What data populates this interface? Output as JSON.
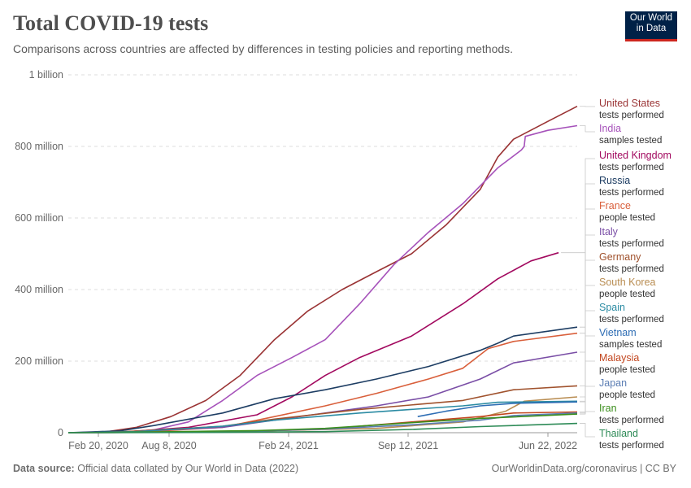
{
  "header": {
    "title": "Total COVID-19 tests",
    "subtitle": "Comparisons across countries are affected by differences in testing policies and reporting methods.",
    "logo_line1": "Our World",
    "logo_line2": "in Data"
  },
  "footer": {
    "source_label": "Data source:",
    "source_text": "Official data collated by Our World in Data (2022)",
    "right_text": "OurWorldinData.org/coronavirus | CC BY"
  },
  "colors": {
    "logo_bg": "#002147",
    "logo_accent": "#ce261e"
  },
  "chart_data": {
    "type": "line",
    "title": "Total COVID-19 tests",
    "x_ticks": [
      "Feb 20, 2020",
      "Aug 8, 2020",
      "Feb 24, 2021",
      "Sep 12, 2021",
      "Jun 22, 2022"
    ],
    "x_range": [
      "2020-01-01",
      "2022-06-22"
    ],
    "y_ticks": [
      {
        "value": 0,
        "label": "0"
      },
      {
        "value": 200000000,
        "label": "200 million"
      },
      {
        "value": 400000000,
        "label": "400 million"
      },
      {
        "value": 600000000,
        "label": "600 million"
      },
      {
        "value": 800000000,
        "label": "800 million"
      },
      {
        "value": 1000000000,
        "label": "1 billion"
      }
    ],
    "ylim": [
      0,
      1000000000
    ],
    "grid": true,
    "legend": "right",
    "series": [
      {
        "name": "United States",
        "unit": "tests performed",
        "color": "#9a3334",
        "points": [
          [
            "2020-01-01",
            0
          ],
          [
            "2020-03-01",
            1000000
          ],
          [
            "2020-05-01",
            15000000
          ],
          [
            "2020-07-01",
            45000000
          ],
          [
            "2020-09-01",
            90000000
          ],
          [
            "2020-11-01",
            160000000
          ],
          [
            "2021-01-01",
            260000000
          ],
          [
            "2021-03-01",
            340000000
          ],
          [
            "2021-05-01",
            400000000
          ],
          [
            "2021-07-01",
            450000000
          ],
          [
            "2021-09-01",
            500000000
          ],
          [
            "2021-11-01",
            580000000
          ],
          [
            "2022-01-01",
            680000000
          ],
          [
            "2022-02-01",
            770000000
          ],
          [
            "2022-03-01",
            820000000
          ],
          [
            "2022-05-01",
            870000000
          ],
          [
            "2022-06-22",
            912000000
          ]
        ]
      },
      {
        "name": "India",
        "unit": "samples tested",
        "color": "#a652ba",
        "points": [
          [
            "2020-01-01",
            0
          ],
          [
            "2020-04-01",
            1000000
          ],
          [
            "2020-06-01",
            8000000
          ],
          [
            "2020-08-01",
            30000000
          ],
          [
            "2020-10-01",
            90000000
          ],
          [
            "2020-12-01",
            160000000
          ],
          [
            "2021-02-01",
            210000000
          ],
          [
            "2021-04-01",
            260000000
          ],
          [
            "2021-06-01",
            360000000
          ],
          [
            "2021-08-01",
            470000000
          ],
          [
            "2021-10-01",
            560000000
          ],
          [
            "2021-12-01",
            640000000
          ],
          [
            "2022-02-01",
            740000000
          ],
          [
            "2022-03-15",
            790000000
          ],
          [
            "2022-03-20",
            800000000
          ],
          [
            "2022-03-22",
            828000000
          ],
          [
            "2022-05-01",
            845000000
          ],
          [
            "2022-06-22",
            858000000
          ]
        ]
      },
      {
        "name": "United Kingdom",
        "unit": "tests performed",
        "color": "#a2095f",
        "points": [
          [
            "2020-01-01",
            0
          ],
          [
            "2020-04-01",
            1000000
          ],
          [
            "2020-08-01",
            15000000
          ],
          [
            "2020-12-01",
            50000000
          ],
          [
            "2021-02-01",
            100000000
          ],
          [
            "2021-04-01",
            160000000
          ],
          [
            "2021-06-01",
            210000000
          ],
          [
            "2021-09-01",
            270000000
          ],
          [
            "2021-12-01",
            360000000
          ],
          [
            "2022-02-01",
            430000000
          ],
          [
            "2022-04-01",
            480000000
          ],
          [
            "2022-05-20",
            503000000
          ]
        ]
      },
      {
        "name": "Russia",
        "unit": "tests performed",
        "color": "#1d3d63",
        "points": [
          [
            "2020-01-01",
            0
          ],
          [
            "2020-04-01",
            5000000
          ],
          [
            "2020-06-01",
            20000000
          ],
          [
            "2020-10-01",
            55000000
          ],
          [
            "2021-01-01",
            95000000
          ],
          [
            "2021-04-01",
            120000000
          ],
          [
            "2021-07-01",
            150000000
          ],
          [
            "2021-10-01",
            185000000
          ],
          [
            "2022-01-01",
            230000000
          ],
          [
            "2022-02-01",
            250000000
          ],
          [
            "2022-03-01",
            270000000
          ],
          [
            "2022-06-22",
            295000000
          ]
        ]
      },
      {
        "name": "France",
        "unit": "people tested",
        "color": "#d95f3b",
        "points": [
          [
            "2020-01-01",
            0
          ],
          [
            "2020-05-01",
            1000000
          ],
          [
            "2020-10-01",
            15000000
          ],
          [
            "2021-01-01",
            45000000
          ],
          [
            "2021-04-01",
            75000000
          ],
          [
            "2021-07-01",
            110000000
          ],
          [
            "2021-10-01",
            150000000
          ],
          [
            "2021-12-01",
            180000000
          ],
          [
            "2022-01-15",
            235000000
          ],
          [
            "2022-03-01",
            255000000
          ],
          [
            "2022-06-22",
            278000000
          ]
        ]
      },
      {
        "name": "Italy",
        "unit": "tests performed",
        "color": "#7a4ea6",
        "points": [
          [
            "2020-01-01",
            0
          ],
          [
            "2020-04-01",
            2000000
          ],
          [
            "2020-10-01",
            15000000
          ],
          [
            "2021-01-01",
            35000000
          ],
          [
            "2021-04-01",
            55000000
          ],
          [
            "2021-07-01",
            75000000
          ],
          [
            "2021-10-01",
            100000000
          ],
          [
            "2022-01-01",
            150000000
          ],
          [
            "2022-03-01",
            195000000
          ],
          [
            "2022-06-22",
            225000000
          ]
        ]
      },
      {
        "name": "Germany",
        "unit": "tests performed",
        "color": "#a0522d",
        "points": [
          [
            "2020-01-01",
            0
          ],
          [
            "2020-04-01",
            2000000
          ],
          [
            "2020-10-01",
            18000000
          ],
          [
            "2021-01-01",
            38000000
          ],
          [
            "2021-06-01",
            65000000
          ],
          [
            "2021-12-01",
            90000000
          ],
          [
            "2022-03-01",
            120000000
          ],
          [
            "2022-06-22",
            131000000
          ]
        ]
      },
      {
        "name": "South Korea",
        "unit": "people tested",
        "color": "#b98d52",
        "points": [
          [
            "2020-01-01",
            0
          ],
          [
            "2020-06-01",
            1000000
          ],
          [
            "2021-01-01",
            6000000
          ],
          [
            "2021-07-01",
            12000000
          ],
          [
            "2021-12-01",
            30000000
          ],
          [
            "2022-02-15",
            60000000
          ],
          [
            "2022-03-20",
            88000000
          ],
          [
            "2022-06-22",
            100000000
          ]
        ]
      },
      {
        "name": "Spain",
        "unit": "tests performed",
        "color": "#2b8ba3",
        "points": [
          [
            "2020-01-01",
            0
          ],
          [
            "2020-05-01",
            3000000
          ],
          [
            "2020-10-01",
            18000000
          ],
          [
            "2021-01-01",
            35000000
          ],
          [
            "2021-06-01",
            55000000
          ],
          [
            "2021-12-01",
            75000000
          ],
          [
            "2022-02-01",
            85000000
          ],
          [
            "2022-06-22",
            88000000
          ]
        ]
      },
      {
        "name": "Vietnam",
        "unit": "samples tested",
        "color": "#2e6db4",
        "points": [
          [
            "2021-09-12",
            45000000
          ],
          [
            "2021-11-01",
            60000000
          ],
          [
            "2022-01-01",
            75000000
          ],
          [
            "2022-03-01",
            82000000
          ],
          [
            "2022-06-22",
            86000000
          ]
        ]
      },
      {
        "name": "Malaysia",
        "unit": "people tested",
        "color": "#c2461f",
        "points": [
          [
            "2020-01-01",
            0
          ],
          [
            "2020-10-01",
            2000000
          ],
          [
            "2021-04-01",
            10000000
          ],
          [
            "2021-09-01",
            30000000
          ],
          [
            "2022-01-01",
            45000000
          ],
          [
            "2022-03-01",
            55000000
          ],
          [
            "2022-06-22",
            58000000
          ]
        ]
      },
      {
        "name": "Japan",
        "unit": "people tested",
        "color": "#5b7db3",
        "points": [
          [
            "2020-01-01",
            0
          ],
          [
            "2020-10-01",
            2000000
          ],
          [
            "2021-04-01",
            10000000
          ],
          [
            "2021-09-01",
            22000000
          ],
          [
            "2022-01-01",
            35000000
          ],
          [
            "2022-03-01",
            48000000
          ],
          [
            "2022-06-22",
            55000000
          ]
        ]
      },
      {
        "name": "Iran",
        "unit": "tests performed",
        "color": "#3b8e1c",
        "points": [
          [
            "2020-01-01",
            0
          ],
          [
            "2020-06-01",
            2000000
          ],
          [
            "2020-12-01",
            6000000
          ],
          [
            "2021-04-01",
            12000000
          ],
          [
            "2021-09-01",
            28000000
          ],
          [
            "2022-01-01",
            40000000
          ],
          [
            "2022-06-22",
            52000000
          ]
        ]
      },
      {
        "name": "Thailand",
        "unit": "tests performed",
        "color": "#2e8b57",
        "points": [
          [
            "2020-01-01",
            0
          ],
          [
            "2020-10-01",
            1000000
          ],
          [
            "2021-04-01",
            3000000
          ],
          [
            "2021-09-01",
            9000000
          ],
          [
            "2022-01-01",
            17000000
          ],
          [
            "2022-06-22",
            26000000
          ]
        ]
      }
    ]
  }
}
